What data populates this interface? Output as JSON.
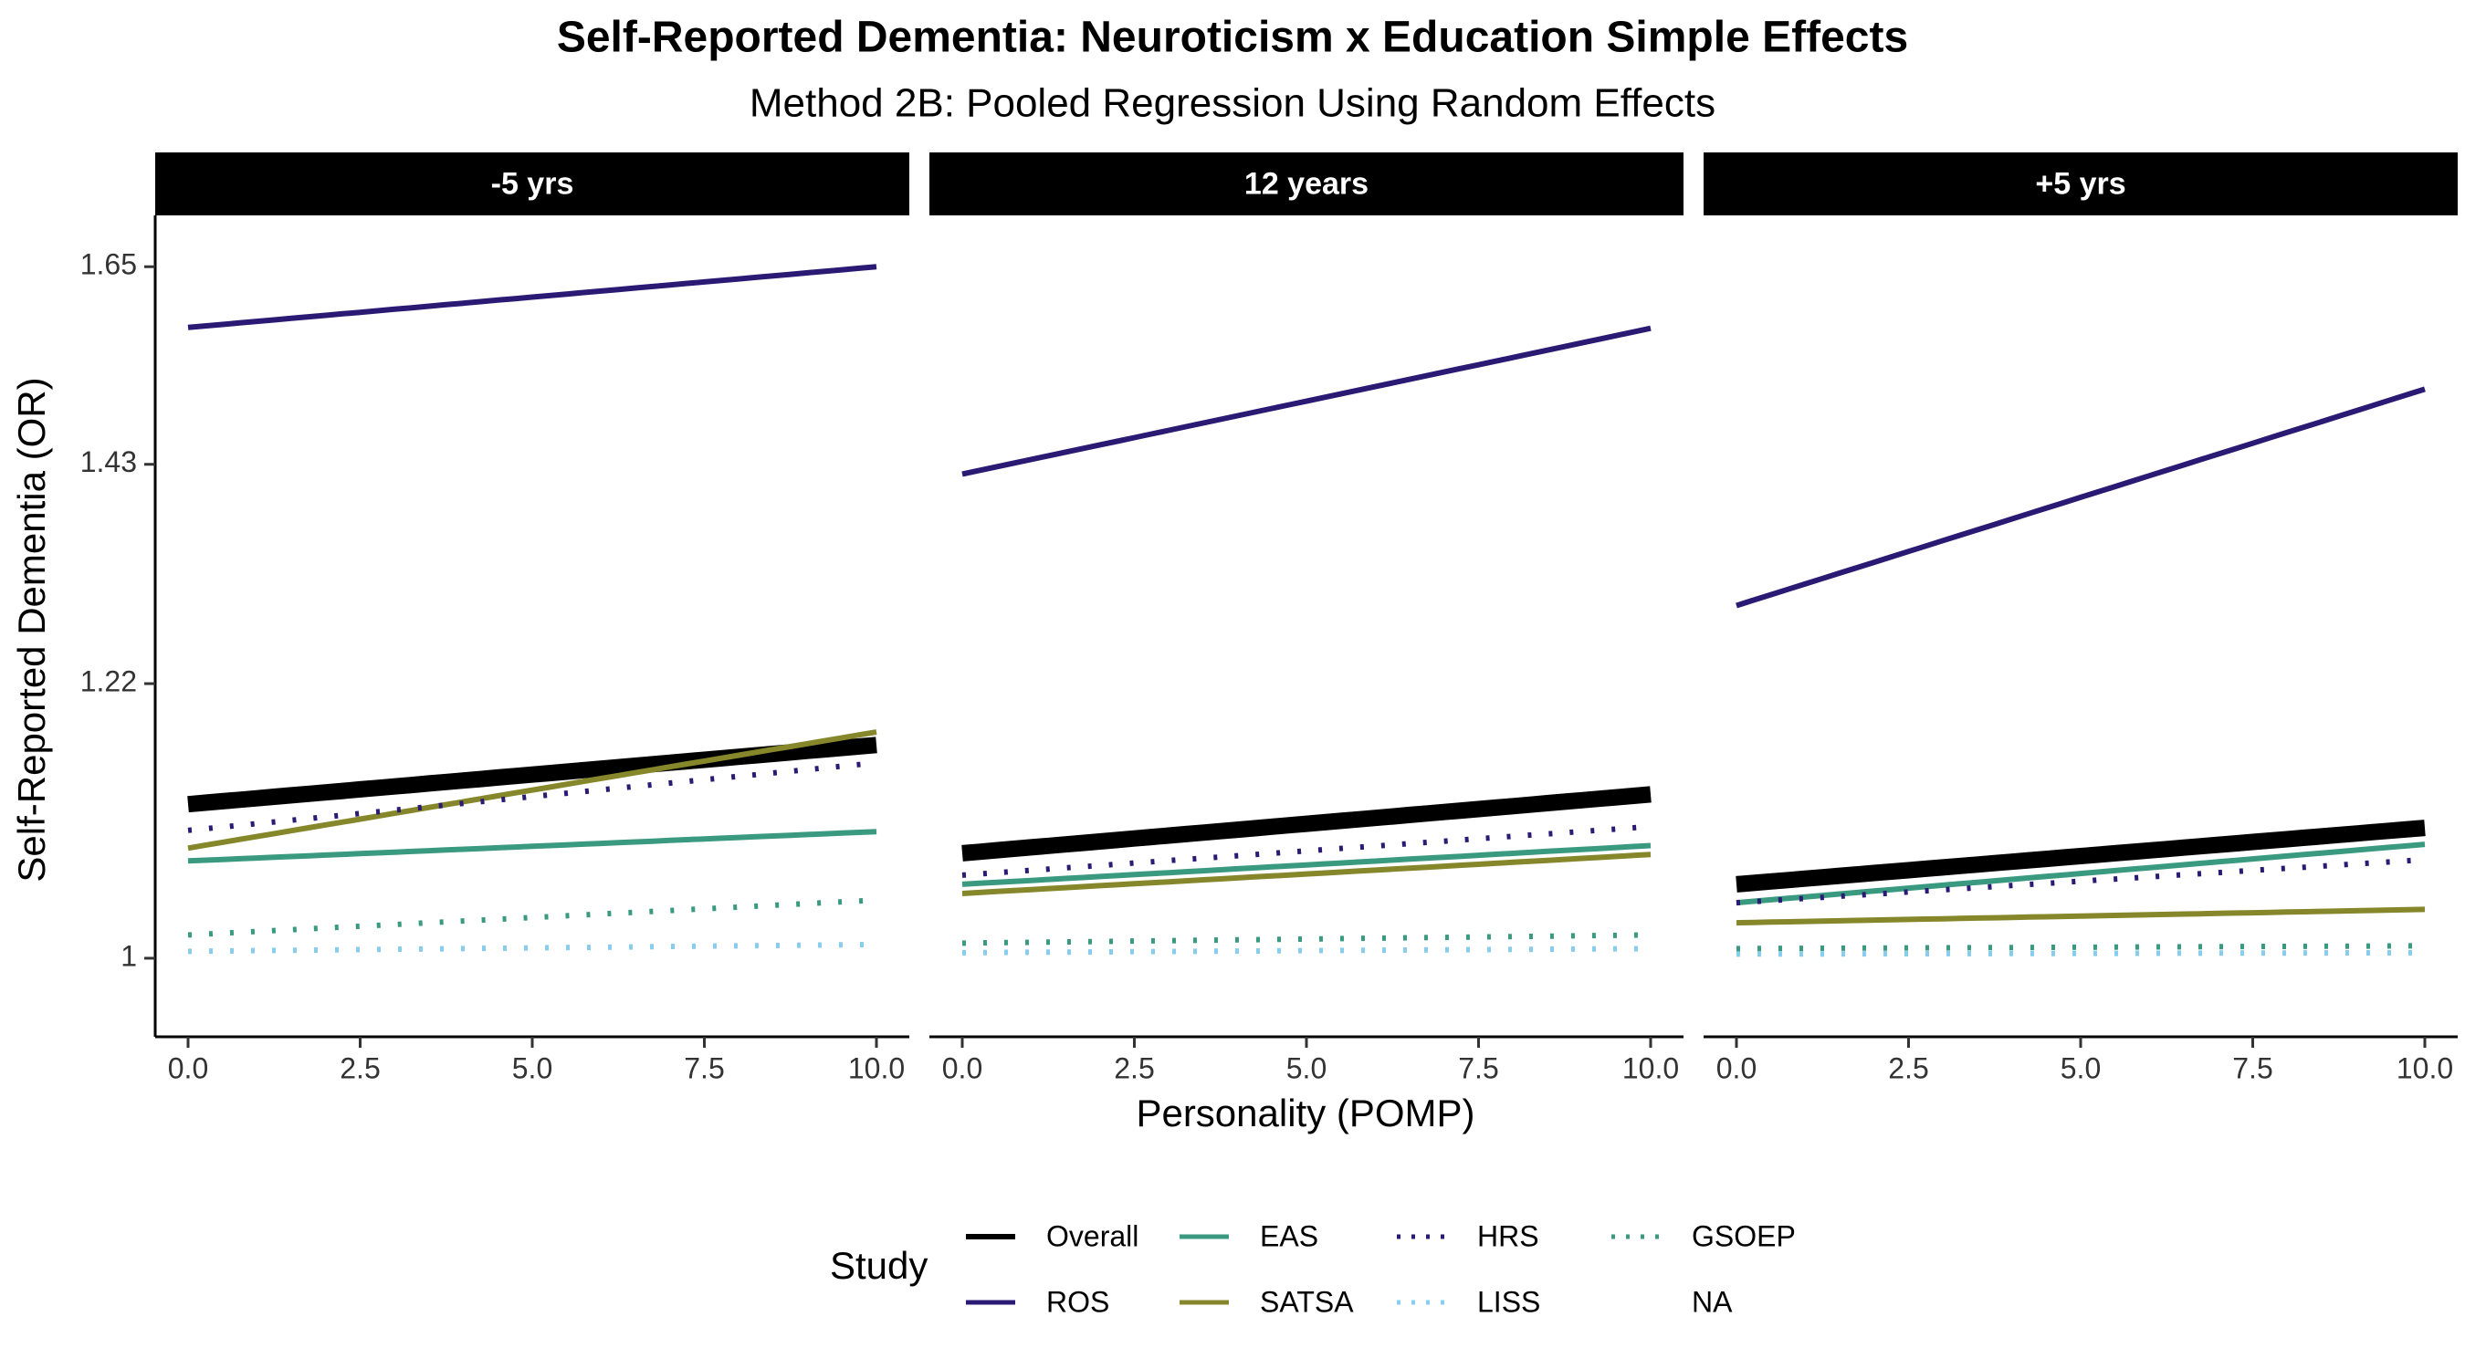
{
  "chart_data": {
    "type": "line",
    "title": "Self-Reported Dementia: Neuroticism x Education Simple Effects",
    "subtitle": "Method 2B: Pooled Regression Using Random Effects",
    "xlabel": "Personality (POMP)",
    "ylabel": "Self-Reported Dementia (OR)",
    "x_ticks": [
      "0.0",
      "2.5",
      "5.0",
      "7.5",
      "10.0"
    ],
    "xlim": [
      0,
      10
    ],
    "y_ticks": [
      {
        "value": 1.0,
        "label": "1"
      },
      {
        "value": 1.22,
        "label": "1.22"
      },
      {
        "value": 1.43,
        "label": "1.43"
      },
      {
        "value": 1.65,
        "label": "1.65"
      }
    ],
    "ylim": [
      0.97,
      1.69
    ],
    "y_scale": "log",
    "grid": false,
    "legend": {
      "title": "Study",
      "position": "bottom",
      "entries": [
        {
          "label": "Overall",
          "color": "#000000",
          "dash": "solid"
        },
        {
          "label": "ROS",
          "color": "#2a1a73",
          "dash": "solid"
        },
        {
          "label": "EAS",
          "color": "#3a9a80",
          "dash": "solid"
        },
        {
          "label": "SATSA",
          "color": "#86862a",
          "dash": "solid"
        },
        {
          "label": "HRS",
          "color": "#2a1a73",
          "dash": "dotted"
        },
        {
          "label": "LISS",
          "color": "#88ccee",
          "dash": "dotted"
        },
        {
          "label": "GSOEP",
          "color": "#3a9a80",
          "dash": "dotted"
        },
        {
          "label": "NA",
          "color": null,
          "dash": "none"
        }
      ]
    },
    "panels": [
      {
        "label": "-5 yrs",
        "series": [
          {
            "name": "Overall",
            "x": [
              0,
              10
            ],
            "y": [
              1.118,
              1.167
            ]
          },
          {
            "name": "ROS",
            "x": [
              0,
              10
            ],
            "y": [
              1.579,
              1.65
            ]
          },
          {
            "name": "EAS",
            "x": [
              0,
              10
            ],
            "y": [
              1.073,
              1.096
            ]
          },
          {
            "name": "SATSA",
            "x": [
              0,
              10
            ],
            "y": [
              1.083,
              1.178
            ]
          },
          {
            "name": "HRS",
            "x": [
              0,
              10
            ],
            "y": [
              1.097,
              1.152
            ]
          },
          {
            "name": "LISS",
            "x": [
              0,
              10
            ],
            "y": [
              1.005,
              1.01
            ]
          },
          {
            "name": "GSOEP",
            "x": [
              0,
              10
            ],
            "y": [
              1.017,
              1.043
            ]
          }
        ]
      },
      {
        "label": "12 years",
        "series": [
          {
            "name": "Overall",
            "x": [
              0,
              10
            ],
            "y": [
              1.079,
              1.126
            ]
          },
          {
            "name": "ROS",
            "x": [
              0,
              10
            ],
            "y": [
              1.42,
              1.578
            ]
          },
          {
            "name": "EAS",
            "x": [
              0,
              10
            ],
            "y": [
              1.055,
              1.085
            ]
          },
          {
            "name": "SATSA",
            "x": [
              0,
              10
            ],
            "y": [
              1.048,
              1.078
            ]
          },
          {
            "name": "HRS",
            "x": [
              0,
              10
            ],
            "y": [
              1.062,
              1.1
            ]
          },
          {
            "name": "LISS",
            "x": [
              0,
              10
            ],
            "y": [
              1.004,
              1.007
            ]
          },
          {
            "name": "GSOEP",
            "x": [
              0,
              10
            ],
            "y": [
              1.011,
              1.017
            ]
          }
        ]
      },
      {
        "label": "+5 yrs",
        "series": [
          {
            "name": "Overall",
            "x": [
              0,
              10
            ],
            "y": [
              1.055,
              1.099
            ]
          },
          {
            "name": "ROS",
            "x": [
              0,
              10
            ],
            "y": [
              1.291,
              1.51
            ]
          },
          {
            "name": "EAS",
            "x": [
              0,
              10
            ],
            "y": [
              1.041,
              1.086
            ]
          },
          {
            "name": "SATSA",
            "x": [
              0,
              10
            ],
            "y": [
              1.026,
              1.036
            ]
          },
          {
            "name": "HRS",
            "x": [
              0,
              10
            ],
            "y": [
              1.041,
              1.074
            ]
          },
          {
            "name": "LISS",
            "x": [
              0,
              10
            ],
            "y": [
              1.003,
              1.004
            ]
          },
          {
            "name": "GSOEP",
            "x": [
              0,
              10
            ],
            "y": [
              1.007,
              1.009
            ]
          }
        ]
      }
    ]
  }
}
